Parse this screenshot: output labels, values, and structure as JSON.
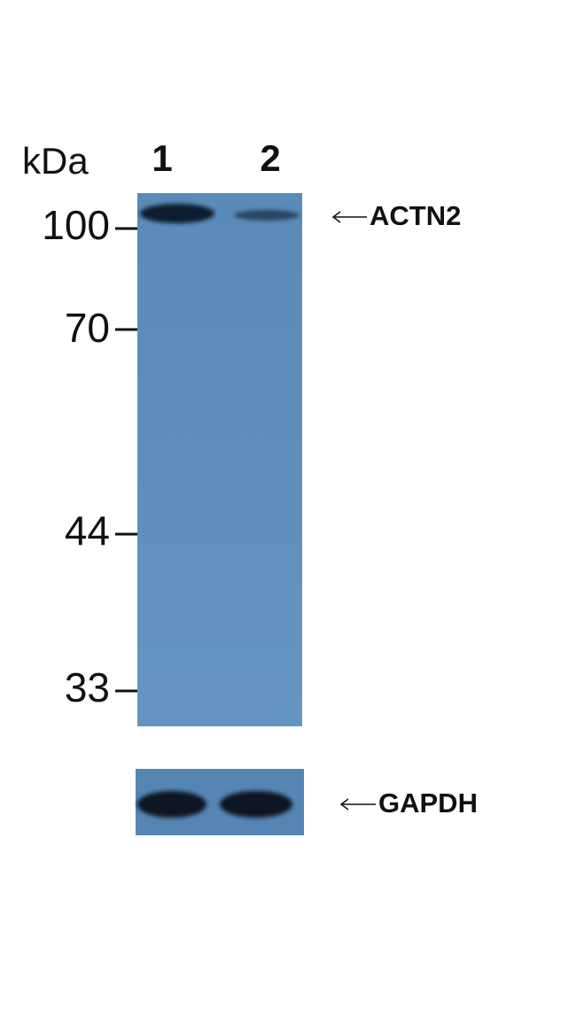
{
  "unit": "kDa",
  "lanes": [
    "1",
    "2"
  ],
  "markers": [
    "100",
    "70",
    "44",
    "33"
  ],
  "bands": [
    "ACTN2",
    "GAPDH"
  ]
}
